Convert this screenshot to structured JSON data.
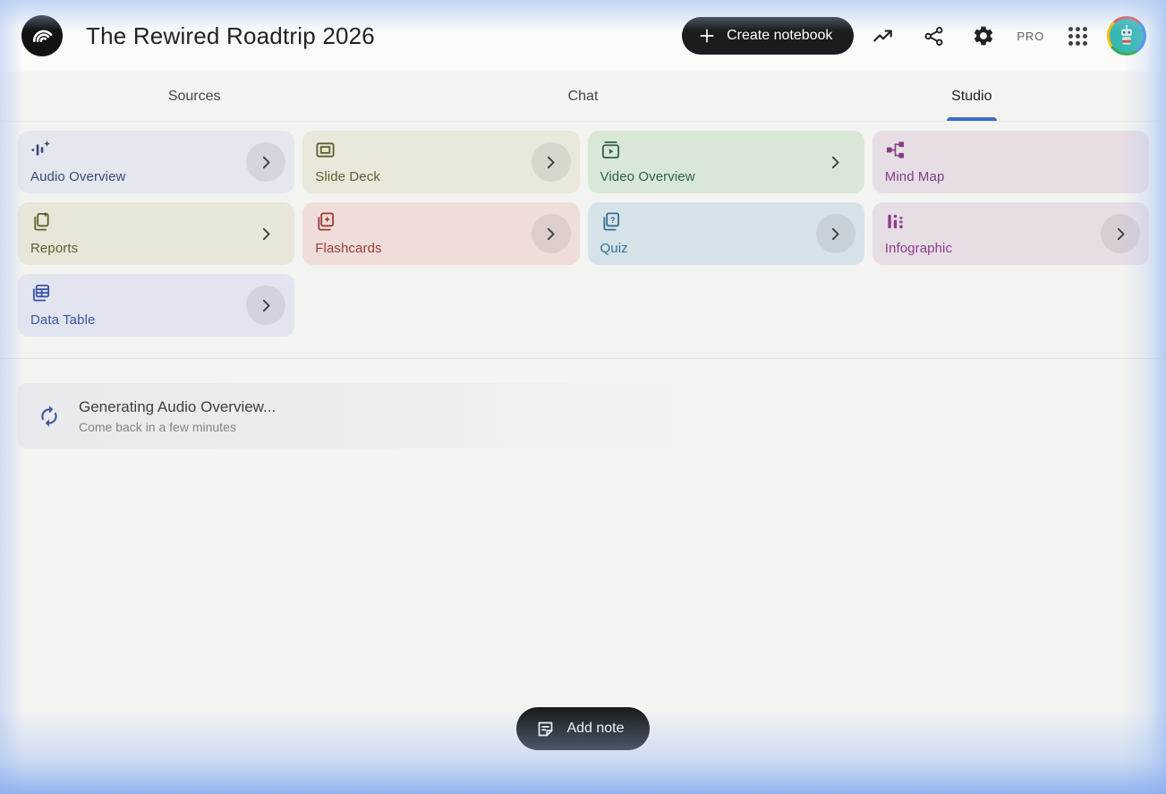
{
  "header": {
    "title": "The Rewired Roadtrip 2026",
    "create_button_label": "Create notebook",
    "pro_badge": "PRO"
  },
  "tabs": [
    {
      "label": "Sources",
      "active": false
    },
    {
      "label": "Chat",
      "active": false
    },
    {
      "label": "Studio",
      "active": true
    }
  ],
  "colors": {
    "accent_tab_underline": "#3b6cc5",
    "header_bg": "#fafaf9",
    "page_bg": "#f3f3f1",
    "button_bg": "#1b1c1d",
    "spinner_blue": "#41599c"
  },
  "studio": {
    "tools": [
      {
        "label": "Audio Overview",
        "icon": "audio-waveform-sparkle-icon",
        "bg": "#e4e7ee",
        "fg": "#394a76",
        "chevron": "circle"
      },
      {
        "label": "Slide Deck",
        "icon": "slideshow-icon",
        "bg": "#e9e8da",
        "fg": "#625e2f",
        "chevron": "circle"
      },
      {
        "label": "Video Overview",
        "icon": "video-library-icon",
        "bg": "#d9e7d7",
        "fg": "#2e6345",
        "chevron": "plain"
      },
      {
        "label": "Mind Map",
        "icon": "mind-map-icon",
        "bg": "#e7dde5",
        "fg": "#833e84",
        "chevron": "none"
      },
      {
        "label": "Reports",
        "icon": "report-sparkle-icon",
        "bg": "#e8e6d8",
        "fg": "#625e2f",
        "chevron": "plain"
      },
      {
        "label": "Flashcards",
        "icon": "flashcards-star-icon",
        "bg": "#efddd9",
        "fg": "#9c3a35",
        "chevron": "circle"
      },
      {
        "label": "Quiz",
        "icon": "quiz-cards-icon",
        "bg": "#d5e3e9",
        "fg": "#33708f",
        "chevron": "circle"
      },
      {
        "label": "Infographic",
        "icon": "bar-chart-icon",
        "bg": "#e7dde5",
        "fg": "#8c3d8c",
        "chevron": "circle"
      },
      {
        "label": "Data Table",
        "icon": "data-table-icon",
        "bg": "#e2e5ef",
        "fg": "#3a55a5",
        "chevron": "circle"
      }
    ]
  },
  "status": {
    "title": "Generating Audio Overview...",
    "subtitle": "Come back in a few minutes"
  },
  "footer": {
    "add_note_label": "Add note"
  }
}
